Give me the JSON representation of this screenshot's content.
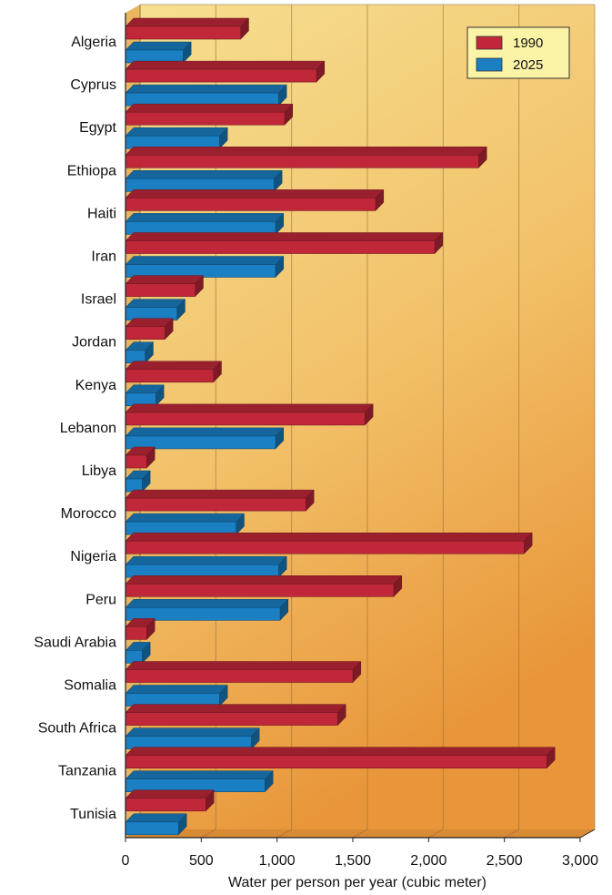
{
  "chart_data": {
    "type": "bar",
    "orientation": "horizontal",
    "title": "",
    "xlabel": "Water per person per year (cubic meter)",
    "ylabel": "",
    "xlim": [
      0,
      3000
    ],
    "xticks": [
      0,
      500,
      1000,
      1500,
      2000,
      2500,
      3000
    ],
    "xtick_labels": [
      "0",
      "500",
      "1,000",
      "1,500",
      "2,000",
      "2,500",
      "3,000"
    ],
    "grid": true,
    "legend_position": "top-right",
    "categories": [
      "Algeria",
      "Cyprus",
      "Egypt",
      "Ethiopa",
      "Haiti",
      "Iran",
      "Israel",
      "Jordan",
      "Kenya",
      "Lebanon",
      "Libya",
      "Morocco",
      "Nigeria",
      "Peru",
      "Saudi Arabia",
      "Somalia",
      "South Africa",
      "Tanzania",
      "Tunisia"
    ],
    "series": [
      {
        "name": "1990",
        "color": "#c0283a",
        "values": [
          760,
          1260,
          1050,
          2330,
          1650,
          2040,
          460,
          260,
          580,
          1580,
          140,
          1190,
          2630,
          1770,
          140,
          1500,
          1400,
          2780,
          530
        ]
      },
      {
        "name": "2025",
        "color": "#1a7fc3",
        "values": [
          380,
          1010,
          620,
          980,
          990,
          990,
          340,
          130,
          200,
          990,
          110,
          730,
          1010,
          1020,
          110,
          620,
          830,
          920,
          350
        ]
      }
    ],
    "colors": {
      "plot_bg_top": "#f5dc8a",
      "plot_bg_bottom": "#ea9a3c",
      "legend_bg": "#fbf3a6"
    }
  }
}
